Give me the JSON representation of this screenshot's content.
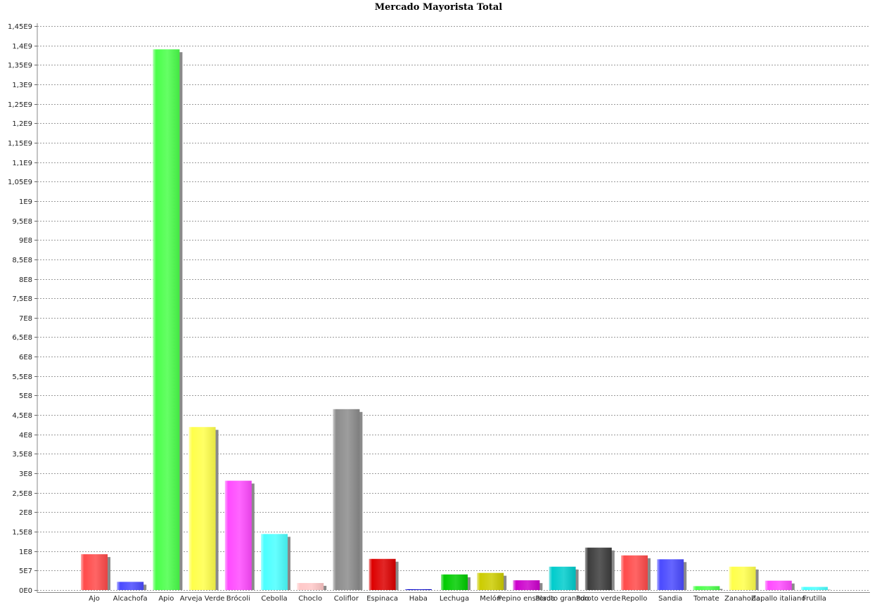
{
  "chart_data": {
    "type": "bar",
    "title": "Mercado Mayorista Total",
    "xlabel": "",
    "ylabel": "",
    "ylim": [
      0,
      1450000000
    ],
    "grid": true,
    "legend": "none",
    "y_ticks": [
      0,
      50000000,
      100000000,
      150000000,
      200000000,
      250000000,
      300000000,
      350000000,
      400000000,
      450000000,
      500000000,
      550000000,
      600000000,
      650000000,
      700000000,
      750000000,
      800000000,
      850000000,
      900000000,
      950000000,
      1000000000,
      1050000000,
      1100000000,
      1150000000,
      1200000000,
      1250000000,
      1300000000,
      1350000000,
      1400000000,
      1450000000
    ],
    "y_tick_labels": [
      "0E0",
      "5E7",
      "1E8",
      "1,5E8",
      "2E8",
      "2,5E8",
      "3E8",
      "3,5E8",
      "4E8",
      "4,5E8",
      "5E8",
      "5,5E8",
      "6E8",
      "6,5E8",
      "7E8",
      "7,5E8",
      "8E8",
      "8,5E8",
      "9E8",
      "9,5E8",
      "1E9",
      "1,05E9",
      "1,1E9",
      "1,15E9",
      "1,2E9",
      "1,25E9",
      "1,3E9",
      "1,35E9",
      "1,4E9",
      "1,45E9"
    ],
    "categories": [
      "Ajo",
      "Alcachofa",
      "Apio",
      "Arveja Verde",
      "Brócoli",
      "Cebolla",
      "Choclo",
      "Coliflor",
      "Espinaca",
      "Haba",
      "Lechuga",
      "Melón",
      "Pepino ensalada",
      "Poroto granado",
      "Poroto verde",
      "Repollo",
      "Sandia",
      "Tomate",
      "Zanahoria",
      "Zapallo italiano",
      "Frutilla"
    ],
    "values": [
      92000000,
      21000000,
      1390000000,
      419000000,
      281000000,
      144000000,
      18000000,
      465000000,
      80000000,
      2000000,
      40000000,
      44000000,
      25000000,
      60000000,
      109000000,
      89000000,
      79000000,
      10000000,
      60000000,
      24000000,
      8000000
    ],
    "colors": [
      "#ff4a4a",
      "#4a4aff",
      "#4aff4a",
      "#ffff4a",
      "#ff4aff",
      "#4affff",
      "#ffc8c8",
      "#8c8c8c",
      "#dd0000",
      "#0000cc",
      "#00cc00",
      "#cccc00",
      "#cc00cc",
      "#00cccc",
      "#3c3c3c",
      "#ff4a4a",
      "#4a4aff",
      "#4aff4a",
      "#ffff4a",
      "#ff4aff",
      "#4affff"
    ]
  }
}
